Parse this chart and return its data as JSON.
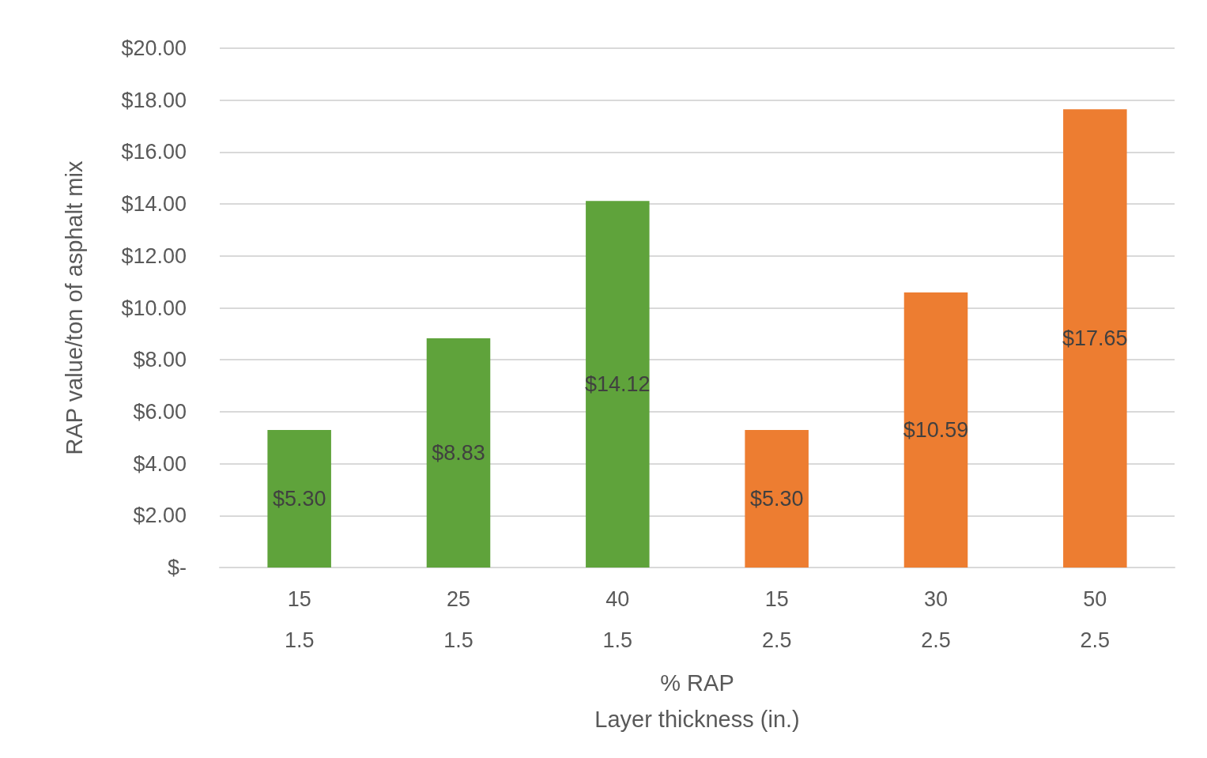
{
  "chart_data": {
    "type": "bar",
    "categories": [
      "15\n1.5",
      "25\n1.5",
      "40\n1.5",
      "15\n2.5",
      "30\n2.5",
      "50\n2.5"
    ],
    "values": [
      5.3,
      8.83,
      14.12,
      5.3,
      10.59,
      17.65
    ],
    "colors": [
      "#5fa33b",
      "#5fa33b",
      "#5fa33b",
      "#ed7d31",
      "#ed7d31",
      "#ed7d31"
    ],
    "value_labels": [
      "$5.30",
      "$8.83",
      "$14.12",
      "$5.30",
      "$10.59",
      "$17.65"
    ],
    "xlabel": "% RAP\nLayer thickness (in.)",
    "ylabel": "RAP value/ton of asphalt mix",
    "ylim": [
      0,
      20
    ],
    "yticks": [
      {
        "value": 0,
        "label": "$-"
      },
      {
        "value": 2,
        "label": "$2.00"
      },
      {
        "value": 4,
        "label": "$4.00"
      },
      {
        "value": 6,
        "label": "$6.00"
      },
      {
        "value": 8,
        "label": "$8.00"
      },
      {
        "value": 10,
        "label": "$10.00"
      },
      {
        "value": 12,
        "label": "$12.00"
      },
      {
        "value": 14,
        "label": "$14.00"
      },
      {
        "value": 16,
        "label": "$16.00"
      },
      {
        "value": 18,
        "label": "$18.00"
      },
      {
        "value": 20,
        "label": "$20.00"
      }
    ],
    "grid": "y"
  }
}
